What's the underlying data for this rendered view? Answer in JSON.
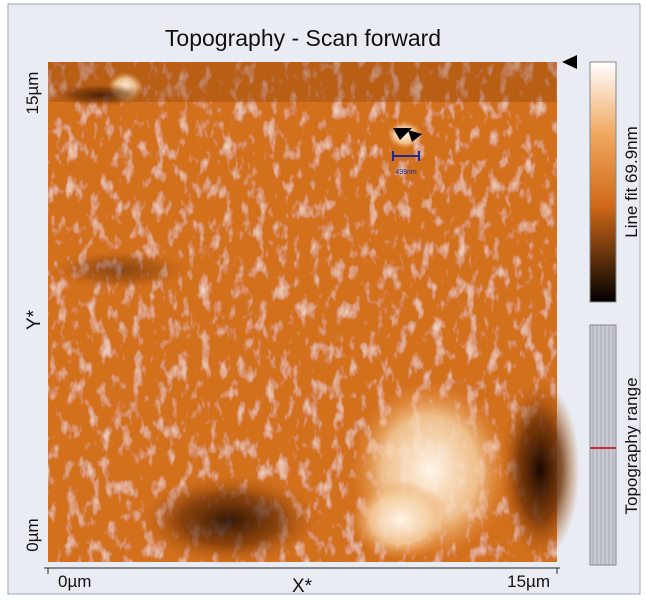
{
  "title": "Topography - Scan forward",
  "scan_image": {
    "scale_bar_label": "499nm"
  },
  "y_axis": {
    "label": "Y*",
    "top_label": "15µm",
    "bottom_label": "0µm"
  },
  "x_axis": {
    "label": "X*",
    "left_label": "0µm",
    "right_label": "15µm"
  },
  "colorbar": {
    "label": "Line fit 69.9nm"
  },
  "range_panel": {
    "label": "Topography range"
  }
}
